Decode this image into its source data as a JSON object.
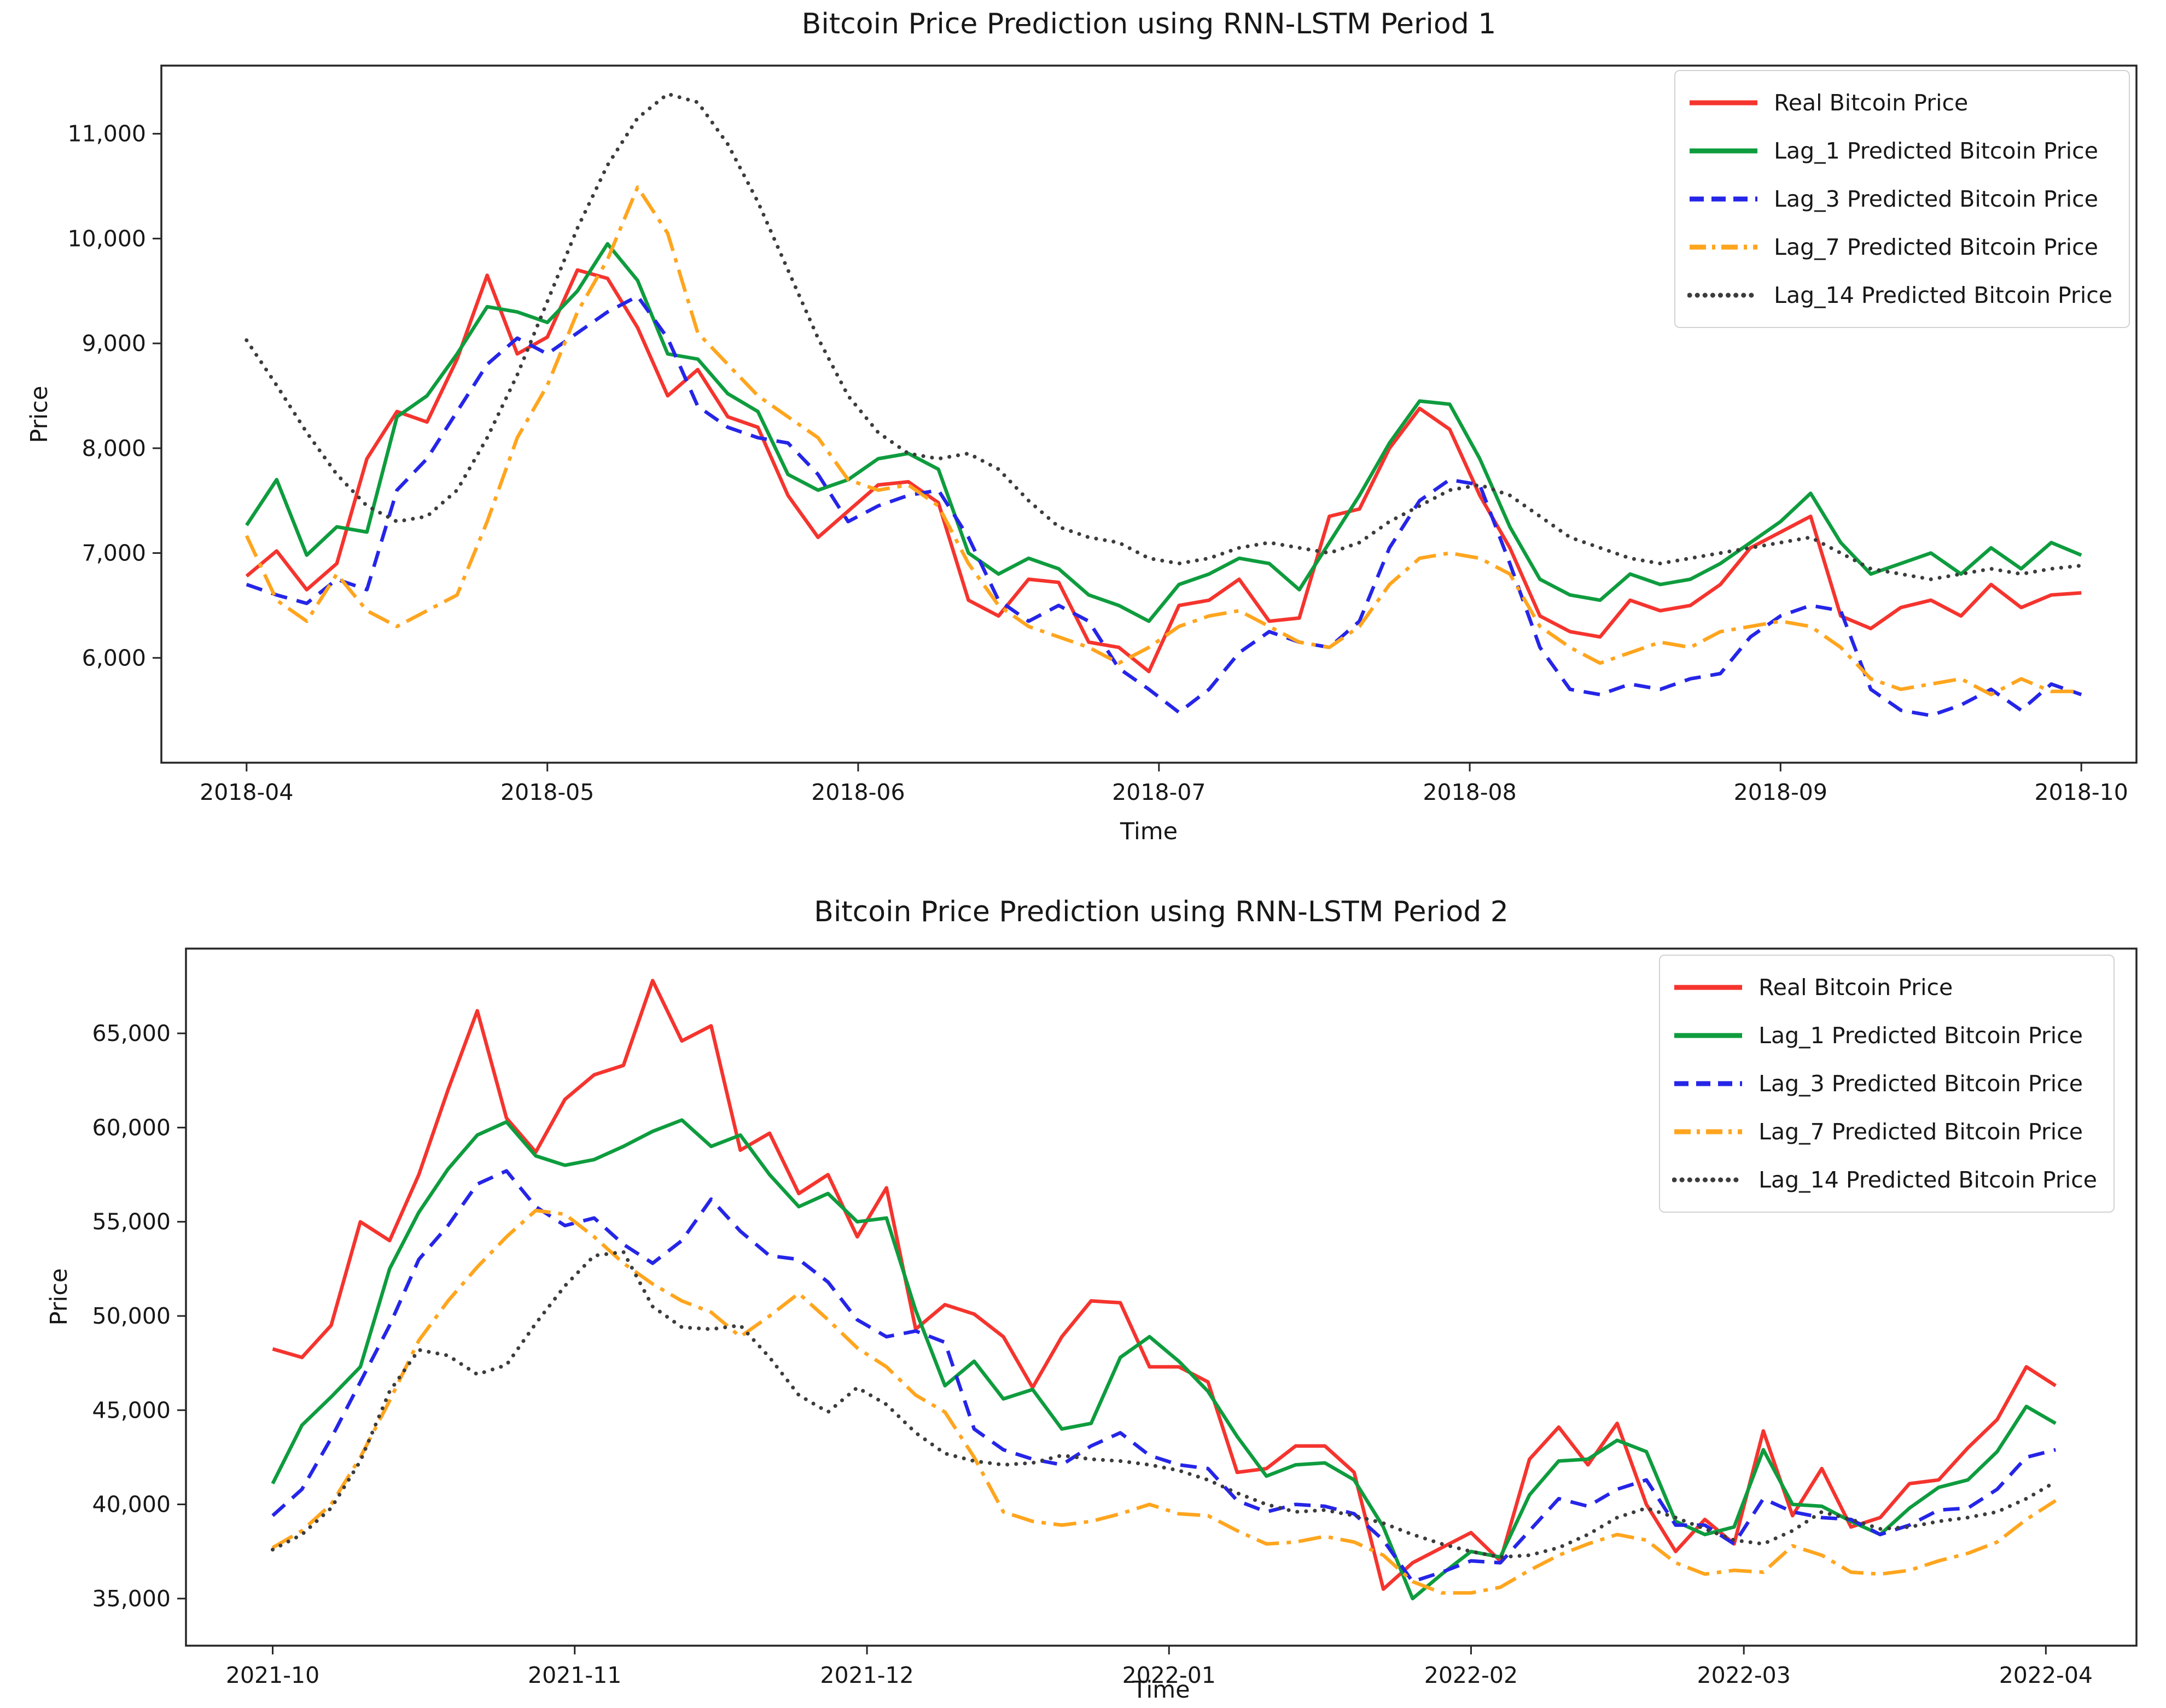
{
  "chart_data": [
    {
      "type": "line",
      "title": "Bitcoin Price Prediction using RNN-LSTM Period 1",
      "xlabel": "Time",
      "ylabel": "Price",
      "legend_position": "upper right",
      "grid": false,
      "ylim": [
        5000,
        11650
      ],
      "xlim_days": [
        -8.5,
        188.5
      ],
      "x_start_date": "2018-04-01",
      "x_step_days": 3,
      "yticks": [
        {
          "value": 6000,
          "label": "6,000"
        },
        {
          "value": 7000,
          "label": "7,000"
        },
        {
          "value": 8000,
          "label": "8,000"
        },
        {
          "value": 9000,
          "label": "9,000"
        },
        {
          "value": 10000,
          "label": "10,000"
        },
        {
          "value": 11000,
          "label": "11,000"
        }
      ],
      "xticks": [
        {
          "day": 0,
          "label": "2018-04"
        },
        {
          "day": 30,
          "label": "2018-05"
        },
        {
          "day": 61,
          "label": "2018-06"
        },
        {
          "day": 91,
          "label": "2018-07"
        },
        {
          "day": 122,
          "label": "2018-08"
        },
        {
          "day": 153,
          "label": "2018-09"
        },
        {
          "day": 183,
          "label": "2018-10"
        }
      ],
      "series": [
        {
          "name": "Real Bitcoin Price",
          "color": "#f5342e",
          "style": "solid",
          "values": [
            6780,
            7020,
            6650,
            6900,
            7900,
            8350,
            8250,
            8850,
            9650,
            8900,
            9060,
            9700,
            9620,
            9150,
            8500,
            8750,
            8300,
            8200,
            7550,
            7150,
            7400,
            7650,
            7680,
            7480,
            6550,
            6400,
            6750,
            6720,
            6150,
            6100,
            5870,
            6500,
            6550,
            6750,
            6350,
            6380,
            7350,
            7420,
            8000,
            8380,
            8180,
            7550,
            7050,
            6400,
            6250,
            6200,
            6550,
            6450,
            6500,
            6700,
            7050,
            7200,
            7350,
            6400,
            6280,
            6480,
            6550,
            6400,
            6700,
            6480,
            6600,
            6620
          ]
        },
        {
          "name": "Lag_1 Predicted Bitcoin Price",
          "color": "#0e9c3e",
          "style": "solid",
          "values": [
            7265,
            7700,
            6980,
            7250,
            7200,
            8300,
            8500,
            8900,
            9350,
            9300,
            9200,
            9500,
            9950,
            9600,
            8900,
            8850,
            8520,
            8350,
            7750,
            7600,
            7700,
            7900,
            7950,
            7800,
            7000,
            6800,
            6950,
            6850,
            6600,
            6500,
            6350,
            6700,
            6800,
            6950,
            6900,
            6650,
            7100,
            7550,
            8050,
            8450,
            8420,
            7900,
            7250,
            6750,
            6600,
            6550,
            6800,
            6700,
            6750,
            6900,
            7100,
            7300,
            7570,
            7100,
            6800,
            6900,
            7000,
            6800,
            7050,
            6850,
            7100,
            6980
          ]
        },
        {
          "name": "Lag_3 Predicted Bitcoin Price",
          "color": "#2525e8",
          "style": "dashed",
          "values": [
            6700,
            6600,
            6520,
            6750,
            6650,
            7600,
            7900,
            8350,
            8800,
            9050,
            8900,
            9100,
            9300,
            9450,
            9050,
            8400,
            8200,
            8100,
            8050,
            7750,
            7300,
            7450,
            7550,
            7600,
            7150,
            6550,
            6350,
            6500,
            6350,
            5900,
            5700,
            5480,
            5700,
            6050,
            6250,
            6150,
            6100,
            6350,
            7050,
            7500,
            7700,
            7650,
            6900,
            6100,
            5700,
            5650,
            5750,
            5700,
            5800,
            5850,
            6200,
            6400,
            6500,
            6450,
            5700,
            5500,
            5450,
            5550,
            5700,
            5500,
            5750,
            5650
          ]
        },
        {
          "name": "Lag_7 Predicted Bitcoin Price",
          "color": "#ffa51e",
          "style": "dashdot",
          "values": [
            7165,
            6550,
            6350,
            6800,
            6450,
            6300,
            6450,
            6600,
            7300,
            8100,
            8600,
            9300,
            9800,
            10490,
            10050,
            9100,
            8800,
            8500,
            8300,
            8100,
            7700,
            7600,
            7650,
            7450,
            6900,
            6500,
            6300,
            6200,
            6100,
            5950,
            6100,
            6300,
            6400,
            6450,
            6300,
            6150,
            6100,
            6300,
            6700,
            6950,
            7000,
            6950,
            6800,
            6300,
            6100,
            5950,
            6050,
            6150,
            6100,
            6250,
            6300,
            6350,
            6300,
            6100,
            5800,
            5700,
            5750,
            5800,
            5650,
            5800,
            5680,
            5680
          ]
        },
        {
          "name": "Lag_14 Predicted Bitcoin Price",
          "color": "#3c3c3c",
          "style": "dotted",
          "values": [
            9030,
            8600,
            8150,
            7750,
            7450,
            7300,
            7350,
            7600,
            8100,
            8700,
            9400,
            10100,
            10700,
            11150,
            11380,
            11300,
            10900,
            10350,
            9700,
            9050,
            8500,
            8150,
            7950,
            7900,
            7950,
            7800,
            7500,
            7250,
            7150,
            7100,
            6950,
            6900,
            6950,
            7050,
            7100,
            7050,
            7000,
            7100,
            7300,
            7450,
            7600,
            7650,
            7550,
            7350,
            7150,
            7050,
            6950,
            6900,
            6950,
            7000,
            7050,
            7100,
            7150,
            7000,
            6850,
            6800,
            6750,
            6800,
            6850,
            6800,
            6850,
            6880
          ]
        }
      ]
    },
    {
      "type": "line",
      "title": "Bitcoin Price Prediction using RNN-LSTM Period 2",
      "xlabel": "Time",
      "ylabel": "Price",
      "legend_position": "upper right",
      "grid": false,
      "ylim": [
        32500,
        69500
      ],
      "xlim_days": [
        -8.9,
        191.3
      ],
      "x_start_date": "2021-10-01",
      "x_step_days": 3,
      "yticks": [
        {
          "value": 35000,
          "label": "35,000"
        },
        {
          "value": 40000,
          "label": "40,000"
        },
        {
          "value": 45000,
          "label": "45,000"
        },
        {
          "value": 50000,
          "label": "50,000"
        },
        {
          "value": 55000,
          "label": "55,000"
        },
        {
          "value": 60000,
          "label": "60,000"
        },
        {
          "value": 65000,
          "label": "65,000"
        }
      ],
      "xticks": [
        {
          "day": 0,
          "label": "2021-10"
        },
        {
          "day": 31,
          "label": "2021-11"
        },
        {
          "day": 61,
          "label": "2021-12"
        },
        {
          "day": 92,
          "label": "2022-01"
        },
        {
          "day": 123,
          "label": "2022-02"
        },
        {
          "day": 151,
          "label": "2022-03"
        },
        {
          "day": 182,
          "label": "2022-04"
        }
      ],
      "series": [
        {
          "name": "Real Bitcoin Price",
          "color": "#f5342e",
          "style": "solid",
          "values": [
            48250,
            47800,
            49500,
            55000,
            54000,
            57500,
            62000,
            66200,
            60500,
            58700,
            61500,
            62800,
            63300,
            67800,
            64600,
            65400,
            58800,
            59700,
            56500,
            57500,
            54200,
            56800,
            49300,
            50600,
            50100,
            48900,
            46200,
            48900,
            50800,
            50700,
            47300,
            47300,
            46500,
            41700,
            41900,
            43100,
            43100,
            41700,
            35500,
            36900,
            37700,
            38500,
            37000,
            42400,
            44100,
            42100,
            44300,
            40000,
            37500,
            39200,
            37900,
            43900,
            39400,
            41900,
            38800,
            39300,
            41100,
            41300,
            43000,
            44500,
            47300,
            46300
          ]
        },
        {
          "name": "Lag_1 Predicted Bitcoin Price",
          "color": "#0e9c3e",
          "style": "solid",
          "values": [
            41100,
            44200,
            45700,
            47300,
            52500,
            55500,
            57800,
            59600,
            60300,
            58500,
            58000,
            58300,
            59000,
            59800,
            60400,
            59000,
            59600,
            57500,
            55800,
            56500,
            55000,
            55200,
            50300,
            46300,
            47600,
            45600,
            46100,
            44000,
            44300,
            47800,
            48900,
            47600,
            46000,
            43600,
            41500,
            42100,
            42200,
            41300,
            38800,
            35000,
            36300,
            37500,
            37200,
            40500,
            42300,
            42400,
            43400,
            42800,
            39100,
            38400,
            38800,
            42900,
            40000,
            39900,
            39100,
            38400,
            39800,
            40900,
            41300,
            42800,
            45200,
            44300
          ]
        },
        {
          "name": "Lag_3 Predicted Bitcoin Price",
          "color": "#2525e8",
          "style": "dashed",
          "values": [
            39400,
            40800,
            43500,
            46500,
            49500,
            53000,
            54800,
            57000,
            57700,
            55800,
            54800,
            55200,
            53800,
            52800,
            54000,
            56200,
            54500,
            53200,
            53000,
            51800,
            49800,
            48900,
            49200,
            48600,
            44000,
            42900,
            42400,
            42100,
            43100,
            43800,
            42600,
            42100,
            41900,
            40200,
            39600,
            40000,
            39900,
            39500,
            38100,
            35900,
            36400,
            37000,
            36900,
            38600,
            40300,
            39900,
            40800,
            41300,
            38900,
            38900,
            37900,
            40300,
            39600,
            39300,
            39200,
            38400,
            38900,
            39700,
            39800,
            40800,
            42500,
            42900
          ]
        },
        {
          "name": "Lag_7 Predicted Bitcoin Price",
          "color": "#ffa51e",
          "style": "dashdot",
          "values": [
            37700,
            38600,
            40000,
            42500,
            45500,
            48700,
            50800,
            52600,
            54200,
            55600,
            55400,
            54200,
            52800,
            51700,
            50800,
            50200,
            48900,
            50000,
            51200,
            49800,
            48300,
            47300,
            45800,
            44900,
            42500,
            39600,
            39100,
            38900,
            39100,
            39500,
            40000,
            39500,
            39400,
            38600,
            37900,
            38000,
            38300,
            38000,
            37300,
            35900,
            35300,
            35300,
            35600,
            36500,
            37300,
            37900,
            38400,
            38100,
            36900,
            36300,
            36500,
            36400,
            37800,
            37300,
            36400,
            36300,
            36500,
            37000,
            37400,
            38000,
            39200,
            40200
          ]
        },
        {
          "name": "Lag_14 Predicted Bitcoin Price",
          "color": "#3c3c3c",
          "style": "dotted",
          "values": [
            37600,
            38400,
            39800,
            42300,
            46000,
            48200,
            47900,
            46900,
            47400,
            49600,
            51600,
            53200,
            53400,
            50500,
            49400,
            49300,
            49500,
            47800,
            45800,
            44900,
            46200,
            45300,
            43800,
            42700,
            42300,
            42100,
            42200,
            42600,
            42400,
            42300,
            42100,
            41800,
            41300,
            40600,
            40000,
            39600,
            39700,
            39400,
            39000,
            38400,
            37900,
            37500,
            37200,
            37300,
            37700,
            38400,
            39300,
            39800,
            39300,
            38700,
            38100,
            37900,
            38600,
            39600,
            39200,
            38700,
            38800,
            39100,
            39300,
            39600,
            40300,
            41200
          ]
        }
      ]
    }
  ]
}
